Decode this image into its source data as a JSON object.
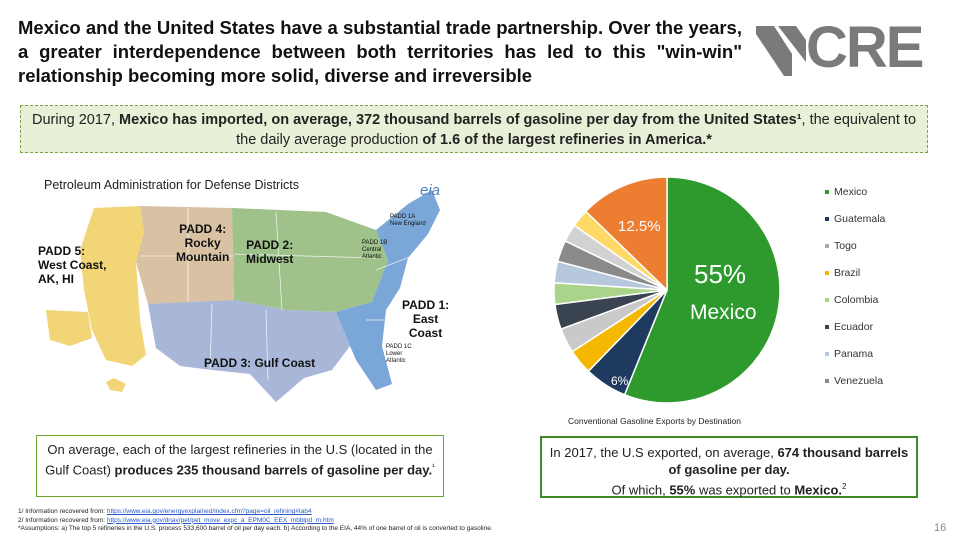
{
  "headline": "Mexico and the United States have a substantial trade partnership. Over the years, a greater interdependence between both territories has led to this \"win-win\" relationship becoming more solid, diverse and irreversible",
  "logo_text": "CRE",
  "banner": {
    "part1": "During 2017, ",
    "bold1": "Mexico has imported, on average, 372 thousand barrels of gasoline per day from the United States¹",
    "part2": ", the equivalent to the daily average production ",
    "bold2": "of 1.6 of the largest refineries in America.*"
  },
  "map": {
    "title": "Petroleum Administration for Defense Districts",
    "eia": "eia",
    "padd1": "PADD 1:\nEast\nCoast",
    "padd2": "PADD 2:\nMidwest",
    "padd3": "PADD 3: Gulf Coast",
    "padd4": "PADD 4:\nRocky\nMountain",
    "padd5": "PADD 5:\nWest Coast,\nAK, HI",
    "padd1a": "PADD 1A\nNew England",
    "padd1b": "PADD 1B\nCentral\nAtlantic",
    "padd1c": "PADD 1C\nLower\nAtlantic"
  },
  "chart_data": {
    "type": "pie",
    "title": "Conventional Gasoline Exports by Destination",
    "legend_position": "right",
    "slices": [
      {
        "name": "Mexico",
        "value": 55,
        "color": "#2e9a2e"
      },
      {
        "name": "Guatemala",
        "value": 6,
        "color": "#1f3a5f"
      },
      {
        "name": "Togo",
        "value": 3.5,
        "color": "#f5b800"
      },
      {
        "name": "Brazil",
        "value": 3.5,
        "color": "#c9c9c9"
      },
      {
        "name": "Colombia",
        "value": 3.5,
        "color": "#3a4450"
      },
      {
        "name": "Ecuador",
        "value": 3,
        "color": "#a9d48a"
      },
      {
        "name": "Panama",
        "value": 3,
        "color": "#b8c8dc"
      },
      {
        "name": "Venezuela",
        "value": 3,
        "color": "#8a8a8a"
      },
      {
        "name": "",
        "value": 2.5,
        "color": "#d2d2d2"
      },
      {
        "name": "",
        "value": 2.5,
        "color": "#ffd966"
      },
      {
        "name": "",
        "value": 12.5,
        "color": "#ed7d31"
      }
    ],
    "labels": {
      "mexico_pct": "55%",
      "mexico_name": "Mexico",
      "orange_pct": "12.5%",
      "navy_pct": "6%"
    }
  },
  "legend_colors": [
    "#2e9a2e",
    "#1f3a5f",
    "#aaaaaa",
    "#f5b800",
    "#a9d48a",
    "#3a4450",
    "#b8c8dc",
    "#8a8a8a"
  ],
  "box_left": {
    "text": "On average, each of the largest refineries in the U.S (located in the Gulf Coast) ",
    "bold": "produces 235 thousand barrels of gasoline per day.",
    "sup": "¹"
  },
  "box_right": {
    "text1": "In 2017, the U.S exported, on average, ",
    "bold1": "674 thousand barrels of gasoline per day.",
    "text2": "Of which, ",
    "bold2": "55%",
    "text3": " was exported to ",
    "bold3": "Mexico.",
    "sup": "2"
  },
  "footnotes": {
    "f1_prefix": "1/ Information recovered from: ",
    "f1_link": "https://www.eia.gov/energyexplained/index.cfm?page=oil_refining#tab4",
    "f2_prefix": "2/ Information recovered from: ",
    "f2_link": "https://www.eia.gov/dnav/pet/pet_move_expc_a_EPM0C_EEX_mbblpd_m.htm",
    "f3": "*Assumptions: a) The top 5 refineries in the U.S. process 533,600 barrel of oil per day each. b) According to the EIA, 44% of one barrel of oil is converted to gasoline."
  },
  "page_number": "16"
}
